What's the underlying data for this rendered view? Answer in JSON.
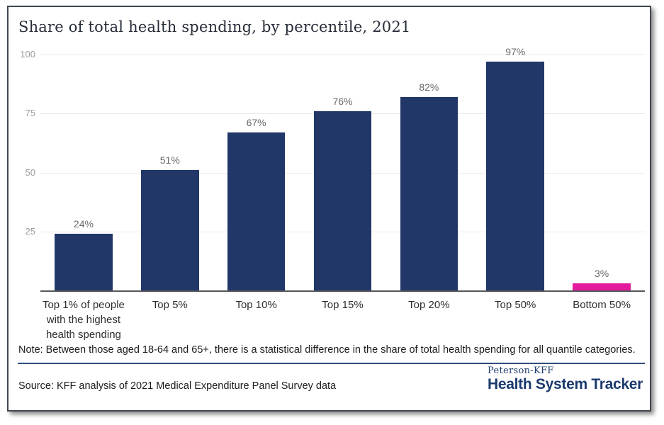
{
  "title": "Share of total health spending, by percentile, 2021",
  "chart_data": {
    "type": "bar",
    "title": "Share of total health spending, by percentile, 2021",
    "categories": [
      "Top 1% of people with the highest health spending",
      "Top 5%",
      "Top 10%",
      "Top 15%",
      "Top 20%",
      "Top 50%",
      "Bottom 50%"
    ],
    "values": [
      24,
      51,
      67,
      76,
      82,
      97,
      3
    ],
    "value_labels": [
      "24%",
      "51%",
      "67%",
      "76%",
      "82%",
      "97%",
      "3%"
    ],
    "bar_colors": [
      "#213768",
      "#213768",
      "#213768",
      "#213768",
      "#213768",
      "#213768",
      "#e21c9c"
    ],
    "yticks": [
      25,
      50,
      75,
      100
    ],
    "ylim": [
      0,
      100
    ],
    "grid": true,
    "legend": "none",
    "xlabel": "",
    "ylabel": ""
  },
  "footer": {
    "note": "Note: Between those aged 18-64 and 65+, there is a statistical difference in the share of total health spending for all quantile categories.",
    "source": "Source: KFF analysis of 2021 Medical Expenditure Panel Survey data",
    "brand_top": "Peterson-KFF",
    "brand_bottom": "Health System Tracker"
  },
  "colors": {
    "bar_navy": "#213768",
    "bar_pink": "#e21c9c",
    "brand_navy": "#1b3a6d",
    "rule_navy": "#2f4d80",
    "gridline": "#e9e9e9",
    "axis": "#55565a",
    "tick_label": "#9b9b9b",
    "value_label": "#696969"
  }
}
